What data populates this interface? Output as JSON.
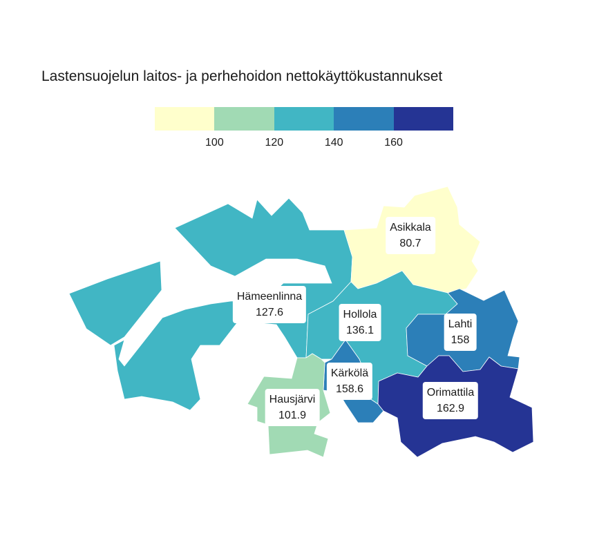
{
  "title": "Lastensuojelun laitos- ja perhehoidon nettokäyttökustannukset",
  "legend": {
    "colors": [
      "#ffffcc",
      "#a1dab4",
      "#41b6c4",
      "#2c7fb8",
      "#253494"
    ],
    "ticks": [
      "100",
      "120",
      "140",
      "160"
    ]
  },
  "regions": [
    {
      "name": "Hämeenlinna",
      "value": "127.6",
      "color": "#41b6c4"
    },
    {
      "name": "Asikkala",
      "value": "80.7",
      "color": "#ffffcc"
    },
    {
      "name": "Hollola",
      "value": "136.1",
      "color": "#41b6c4"
    },
    {
      "name": "Lahti",
      "value": "158",
      "color": "#2c7fb8"
    },
    {
      "name": "Kärkölä",
      "value": "158.6",
      "color": "#2c7fb8"
    },
    {
      "name": "Hausjärvi",
      "value": "101.9",
      "color": "#a1dab4"
    },
    {
      "name": "Orimattila",
      "value": "162.9",
      "color": "#253494"
    }
  ]
}
